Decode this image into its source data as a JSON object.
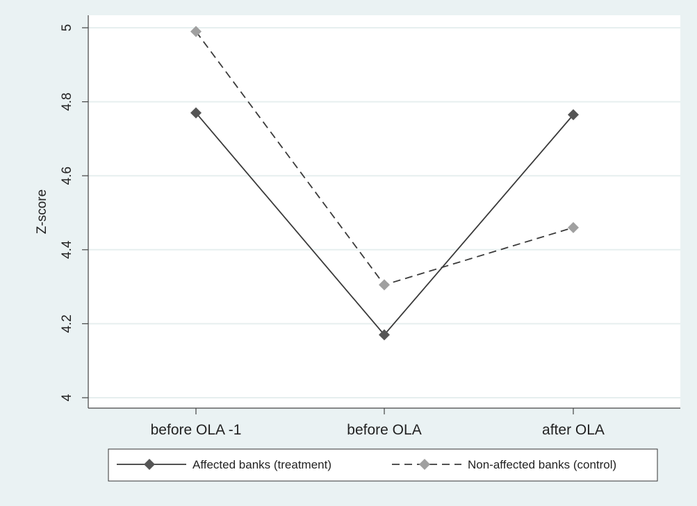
{
  "chart_data": {
    "type": "line",
    "title": "",
    "xlabel": "",
    "ylabel": "Z-score",
    "categories": [
      "before OLA -1",
      "before OLA",
      "after OLA"
    ],
    "ylim": [
      4,
      5
    ],
    "yticks": [
      4,
      4.2,
      4.4,
      4.6,
      4.8,
      5
    ],
    "ytick_labels": [
      "4",
      "4.2",
      "4.4",
      "4.6",
      "4.8",
      "5"
    ],
    "grid": true,
    "legend_position": "bottom",
    "series": [
      {
        "name": "Affected banks (treatment)",
        "values": [
          4.77,
          4.17,
          4.765
        ],
        "color": "#555555",
        "marker": "diamond",
        "line_style": "solid"
      },
      {
        "name": "Non-affected banks (control)",
        "values": [
          4.99,
          4.305,
          4.46
        ],
        "color": "#a0a0a0",
        "marker": "diamond",
        "line_style": "dashed"
      }
    ]
  },
  "colors": {
    "background": "#eaf2f3",
    "plot_area": "#ffffff",
    "gridline": "#e6efef",
    "axis": "#444444"
  }
}
